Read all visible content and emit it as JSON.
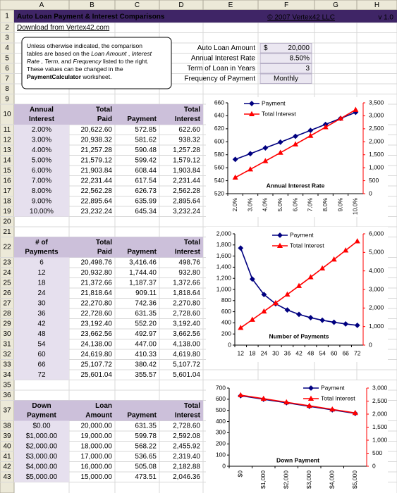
{
  "sheet": {
    "columns": [
      "A",
      "B",
      "C",
      "D",
      "E",
      "F",
      "G",
      "H"
    ],
    "rows": [
      1,
      2,
      3,
      4,
      5,
      6,
      7,
      8,
      9,
      10,
      11,
      12,
      13,
      14,
      15,
      16,
      17,
      18,
      19,
      20,
      21,
      22,
      23,
      24,
      25,
      26,
      27,
      28,
      29,
      30,
      31,
      32,
      33,
      34,
      35,
      36,
      37,
      38,
      39,
      40,
      41,
      42,
      43
    ]
  },
  "header": {
    "title": "Auto Loan Payment & Interest Comparisons",
    "copyright": "© 2007 Vertex42 LLC",
    "version": "v 1.0",
    "link": "Download from Vertex42.com"
  },
  "note": {
    "lines": [
      [
        "Unless otherwise indicated, the comparison"
      ],
      [
        "tables are based on the",
        "Loan Amount",
        ",",
        "Interest"
      ],
      [
        "Rate",
        ",",
        "Term",
        ", and",
        "Frequency",
        "listed to the right."
      ],
      [
        "These values can be changed in the"
      ],
      [
        "PaymentCalculator",
        "worksheet."
      ]
    ]
  },
  "inputs": [
    {
      "label": "Auto Loan Amount",
      "currency": "$",
      "value": "20,000"
    },
    {
      "label": "Annual Interest Rate",
      "value": "8.50%"
    },
    {
      "label": "Term of Loan in Years",
      "value": "3"
    },
    {
      "label": "Frequency of Payment",
      "value": "Monthly"
    }
  ],
  "tables": [
    {
      "headers": [
        [
          "Annual",
          "Interest"
        ],
        [
          "Total",
          "Paid"
        ],
        [
          "Payment"
        ],
        [
          "Total",
          "Interest"
        ]
      ],
      "rows": [
        [
          "2.00%",
          "20,622.60",
          "572.85",
          "622.60"
        ],
        [
          "3.00%",
          "20,938.32",
          "581.62",
          "938.32"
        ],
        [
          "4.00%",
          "21,257.28",
          "590.48",
          "1,257.28"
        ],
        [
          "5.00%",
          "21,579.12",
          "599.42",
          "1,579.12"
        ],
        [
          "6.00%",
          "21,903.84",
          "608.44",
          "1,903.84"
        ],
        [
          "7.00%",
          "22,231.44",
          "617.54",
          "2,231.44"
        ],
        [
          "8.00%",
          "22,562.28",
          "626.73",
          "2,562.28"
        ],
        [
          "9.00%",
          "22,895.64",
          "635.99",
          "2,895.64"
        ],
        [
          "10.00%",
          "23,232.24",
          "645.34",
          "3,232.24"
        ]
      ]
    },
    {
      "headers": [
        [
          "# of",
          "Payments"
        ],
        [
          "Total",
          "Paid"
        ],
        [
          "Payment"
        ],
        [
          "Total",
          "Interest"
        ]
      ],
      "rows": [
        [
          "6",
          "20,498.76",
          "3,416.46",
          "498.76"
        ],
        [
          "12",
          "20,932.80",
          "1,744.40",
          "932.80"
        ],
        [
          "18",
          "21,372.66",
          "1,187.37",
          "1,372.66"
        ],
        [
          "24",
          "21,818.64",
          "909.11",
          "1,818.64"
        ],
        [
          "30",
          "22,270.80",
          "742.36",
          "2,270.80"
        ],
        [
          "36",
          "22,728.60",
          "631.35",
          "2,728.60"
        ],
        [
          "42",
          "23,192.40",
          "552.20",
          "3,192.40"
        ],
        [
          "48",
          "23,662.56",
          "492.97",
          "3,662.56"
        ],
        [
          "54",
          "24,138.00",
          "447.00",
          "4,138.00"
        ],
        [
          "60",
          "24,619.80",
          "410.33",
          "4,619.80"
        ],
        [
          "66",
          "25,107.72",
          "380.42",
          "5,107.72"
        ],
        [
          "72",
          "25,601.04",
          "355.57",
          "5,601.04"
        ]
      ]
    },
    {
      "headers": [
        [
          "Down",
          "Payment"
        ],
        [
          "Loan",
          "Amount"
        ],
        [
          "Payment"
        ],
        [
          "Total",
          "Interest"
        ]
      ],
      "rows": [
        [
          "$0.00",
          "20,000.00",
          "631.35",
          "2,728.60"
        ],
        [
          "$1,000.00",
          "19,000.00",
          "599.78",
          "2,592.08"
        ],
        [
          "$2,000.00",
          "18,000.00",
          "568.22",
          "2,455.92"
        ],
        [
          "$3,000.00",
          "17,000.00",
          "536.65",
          "2,319.40"
        ],
        [
          "$4,000.00",
          "16,000.00",
          "505.08",
          "2,182.88"
        ],
        [
          "$5,000.00",
          "15,000.00",
          "473.51",
          "2,046.36"
        ]
      ]
    }
  ],
  "chart_data": [
    {
      "type": "line",
      "x_label": "Annual Interest Rate",
      "legend": "top",
      "categories": [
        "2.0%",
        "3.0%",
        "4.0%",
        "5.0%",
        "6.0%",
        "7.0%",
        "8.0%",
        "9.0%",
        "10.0%"
      ],
      "series": [
        {
          "name": "Payment",
          "color": "#000080",
          "marker": "diamond",
          "values": [
            572.85,
            581.62,
            590.48,
            599.42,
            608.44,
            617.54,
            626.73,
            635.99,
            645.34
          ]
        },
        {
          "name": "Total Interest",
          "color": "#ff0000",
          "marker": "triangle",
          "axis": "y2",
          "values": [
            622.6,
            938.32,
            1257.28,
            1579.12,
            1903.84,
            2231.44,
            2562.28,
            2895.64,
            3232.24
          ]
        }
      ],
      "ylim": [
        520,
        660
      ],
      "yticks": [
        520,
        540,
        560,
        580,
        600,
        620,
        640,
        660
      ],
      "y2lim": [
        0,
        3500
      ],
      "y2ticks": [
        0,
        500,
        {
          "value": 1000,
          "label": "1,000"
        },
        {
          "value": 1500,
          "label": "1,500"
        },
        {
          "value": 2000,
          "label": "2,000"
        },
        {
          "value": 2500,
          "label": "2,500"
        },
        {
          "value": 3000,
          "label": "3,000"
        },
        {
          "value": 3500,
          "label": "3,500"
        }
      ]
    },
    {
      "type": "line",
      "x_label": "Number of Payments",
      "legend": "top",
      "categories": [
        "12",
        "18",
        "24",
        "30",
        "36",
        "42",
        "48",
        "54",
        "60",
        "66",
        "72"
      ],
      "series": [
        {
          "name": "Payment",
          "color": "#000080",
          "marker": "diamond",
          "values": [
            1744.4,
            1187.37,
            909.11,
            742.36,
            631.35,
            552.2,
            492.97,
            447.0,
            410.33,
            380.42,
            355.57
          ]
        },
        {
          "name": "Total Interest",
          "color": "#ff0000",
          "marker": "triangle",
          "axis": "y2",
          "values": [
            932.8,
            1372.66,
            1818.64,
            2270.8,
            2728.6,
            3192.4,
            3662.56,
            4138.0,
            4619.8,
            5107.72,
            5601.04
          ]
        }
      ],
      "ylim": [
        0,
        2000
      ],
      "yticks": [
        0,
        200,
        400,
        600,
        800,
        {
          "value": 1000,
          "label": "1,000"
        },
        {
          "value": 1200,
          "label": "1,200"
        },
        {
          "value": 1400,
          "label": "1,400"
        },
        {
          "value": 1600,
          "label": "1,600"
        },
        {
          "value": 1800,
          "label": "1,800"
        },
        {
          "value": 2000,
          "label": "2,000"
        }
      ],
      "y2lim": [
        0,
        6000
      ],
      "y2ticks": [
        0,
        {
          "value": 1000,
          "label": "1,000"
        },
        {
          "value": 2000,
          "label": "2,000"
        },
        {
          "value": 3000,
          "label": "3,000"
        },
        {
          "value": 4000,
          "label": "4,000"
        },
        {
          "value": 5000,
          "label": "5,000"
        },
        {
          "value": 6000,
          "label": "6,000"
        }
      ]
    },
    {
      "type": "line",
      "x_label": "Down Payment",
      "legend": "top",
      "categories": [
        "$0",
        "$1,000",
        "$2,000",
        "$3,000",
        "$4,000",
        "$5,000"
      ],
      "series": [
        {
          "name": "Payment",
          "color": "#000080",
          "marker": "diamond",
          "values": [
            631.35,
            599.78,
            568.22,
            536.65,
            505.08,
            473.51
          ]
        },
        {
          "name": "Total Interest",
          "color": "#ff0000",
          "marker": "triangle",
          "axis": "y2",
          "values": [
            2728.6,
            2592.08,
            2455.92,
            2319.4,
            2182.88,
            2046.36
          ]
        }
      ],
      "ylim": [
        0,
        700
      ],
      "yticks": [
        0,
        100,
        200,
        300,
        400,
        500,
        600,
        700
      ],
      "y2lim": [
        0,
        3000
      ],
      "y2ticks": [
        0,
        500,
        {
          "value": 1000,
          "label": "1,000"
        },
        {
          "value": 1500,
          "label": "1,500"
        },
        {
          "value": 2000,
          "label": "2,000"
        },
        {
          "value": 2500,
          "label": "2,500"
        },
        {
          "value": 3000,
          "label": "3,000"
        }
      ]
    }
  ]
}
